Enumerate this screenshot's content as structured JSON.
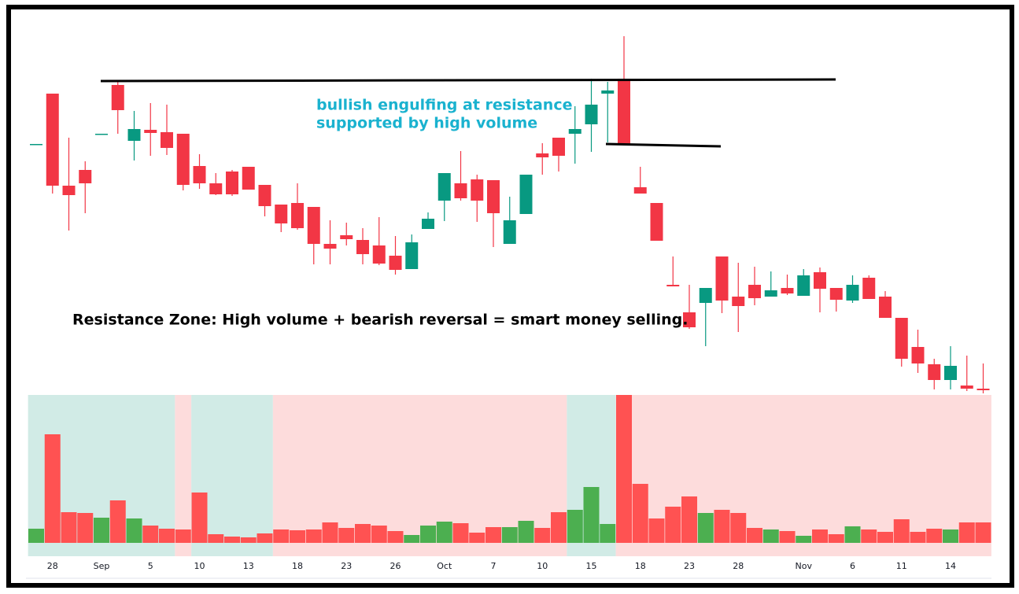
{
  "chart_data": {
    "type": "candlestick",
    "annotations": [
      "bullish engulfing at resistance",
      "supported by high volume",
      "Resistance Zone: High volume + bearish reversal = smart money selling."
    ],
    "categories": [
      null,
      "28",
      null,
      null,
      "Sep",
      null,
      null,
      "5",
      null,
      null,
      "10",
      null,
      null,
      "13",
      null,
      null,
      "18",
      null,
      null,
      "23",
      null,
      null,
      "26",
      null,
      null,
      "Oct",
      null,
      null,
      "7",
      null,
      null,
      "10",
      null,
      null,
      "15",
      null,
      null,
      "18",
      null,
      null,
      "23",
      null,
      null,
      "28",
      null,
      null,
      null,
      "Nov",
      null,
      null,
      "6",
      null,
      null,
      "11",
      null,
      null,
      "14",
      null,
      null
    ],
    "open": [
      31.7,
      38.1,
      26.4,
      28.4,
      33.0,
      39.2,
      32.1,
      33.5,
      33.2,
      33.0,
      28.9,
      26.7,
      28.2,
      28.8,
      26.5,
      24.0,
      24.2,
      23.7,
      19.0,
      20.1,
      19.5,
      18.8,
      17.5,
      15.8,
      20.9,
      24.5,
      26.7,
      27.2,
      27.1,
      19.0,
      22.8,
      30.5,
      32.5,
      33.0,
      34.2,
      38.1,
      40.0,
      26.2,
      24.2,
      13.8,
      10.3,
      11.5,
      17.4,
      12.3,
      13.8,
      12.3,
      13.4,
      12.4,
      15.4,
      13.4,
      11.8,
      14.7,
      12.3,
      9.6,
      5.9,
      3.7,
      1.7,
      1.0,
      0.6
    ],
    "high": [
      31.7,
      38.1,
      32.5,
      29.5,
      33.0,
      39.8,
      35.9,
      36.9,
      36.7,
      33.0,
      30.4,
      28.0,
      28.4,
      28.8,
      26.5,
      24.0,
      26.7,
      23.7,
      22.0,
      21.7,
      21.0,
      22.4,
      20.0,
      20.2,
      23.0,
      28.0,
      30.8,
      27.8,
      27.1,
      25.0,
      27.8,
      31.8,
      32.5,
      36.5,
      40.0,
      39.6,
      45.4,
      28.8,
      24.2,
      17.4,
      13.8,
      13.4,
      17.4,
      16.6,
      16.1,
      15.5,
      15.1,
      15.8,
      16.0,
      13.4,
      15.0,
      15.0,
      13.0,
      9.6,
      8.1,
      4.4,
      6.0,
      4.8,
      3.8
    ],
    "low": [
      31.7,
      25.4,
      20.7,
      22.9,
      33.0,
      33.0,
      29.6,
      30.2,
      30.3,
      25.8,
      26.0,
      25.2,
      25.1,
      25.9,
      22.5,
      20.5,
      20.8,
      16.4,
      16.4,
      18.8,
      16.4,
      16.3,
      15.1,
      15.8,
      20.9,
      21.9,
      24.5,
      21.8,
      18.6,
      19.0,
      22.8,
      27.8,
      28.2,
      29.2,
      30.7,
      31.9,
      31.5,
      25.4,
      19.4,
      13.6,
      8.2,
      6.0,
      10.2,
      7.8,
      11.2,
      12.3,
      12.5,
      12.4,
      10.3,
      10.4,
      11.5,
      12.0,
      9.6,
      3.4,
      2.6,
      0.5,
      0.5,
      0.3,
      0.0
    ],
    "close": [
      31.7,
      26.4,
      25.2,
      26.7,
      33.0,
      36.0,
      33.6,
      33.1,
      31.2,
      26.5,
      26.7,
      25.3,
      25.3,
      25.9,
      23.8,
      21.6,
      21.0,
      19.0,
      18.4,
      19.6,
      17.7,
      16.5,
      15.7,
      19.2,
      22.2,
      28.0,
      24.8,
      24.5,
      22.9,
      22.0,
      27.8,
      30.0,
      30.2,
      33.6,
      36.7,
      38.5,
      31.7,
      25.4,
      19.4,
      13.6,
      8.4,
      13.4,
      11.8,
      11.1,
      12.1,
      13.1,
      12.7,
      15.0,
      13.3,
      11.9,
      13.8,
      12.0,
      9.6,
      4.4,
      3.8,
      1.7,
      3.5,
      0.6,
      0.4
    ],
    "volume": [
      18,
      138,
      39,
      38,
      32,
      54,
      31,
      22,
      18,
      17,
      64,
      11,
      8,
      7,
      12,
      17,
      16,
      17,
      26,
      19,
      24,
      22,
      15,
      10,
      22,
      27,
      25,
      13,
      20,
      20,
      28,
      19,
      39,
      42,
      71,
      24,
      188,
      75,
      31,
      46,
      59,
      38,
      42,
      38,
      19,
      17,
      15,
      9,
      17,
      11,
      21,
      17,
      14,
      30,
      14,
      18,
      17,
      26,
      26
    ],
    "ylim": [
      0,
      47
    ],
    "vlim": [
      0,
      190
    ],
    "up_color": "#089981",
    "down_color": "#f23645",
    "volume_up_color": "#4caf50",
    "volume_down_color": "#ff5252",
    "zones": [
      {
        "from": 0,
        "to": 8,
        "color": "#d1ebe6"
      },
      {
        "from": 9,
        "to": 9,
        "color": "#fddcdc"
      },
      {
        "from": 10,
        "to": 14,
        "color": "#d1ebe6"
      },
      {
        "from": 15,
        "to": 32,
        "color": "#fddcdc"
      },
      {
        "from": 33,
        "to": 35,
        "color": "#d1ebe6"
      },
      {
        "from": 36,
        "to": 58,
        "color": "#fddcdc"
      }
    ]
  }
}
